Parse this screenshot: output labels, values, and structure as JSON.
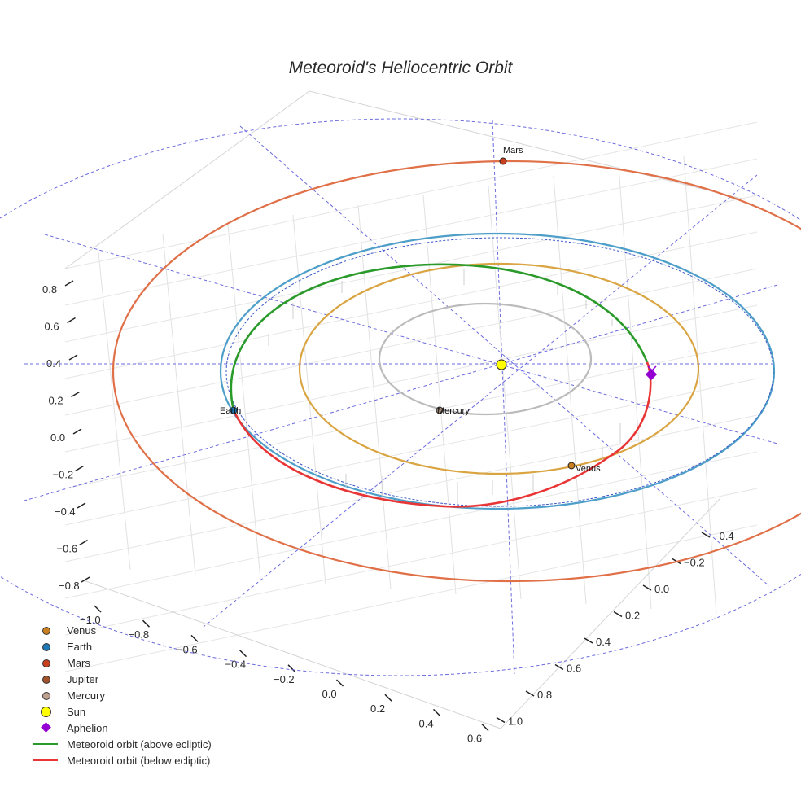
{
  "chart_data": {
    "type": "scatter3d",
    "title": "Meteoroid's Heliocentric Orbit",
    "axes": {
      "x": {
        "ticks": [
          "−1.0",
          "−0.8",
          "−0.6",
          "−0.4",
          "−0.2",
          "0.0",
          "0.2",
          "0.4",
          "0.6"
        ]
      },
      "y": {
        "ticks": [
          "−0.4",
          "−0.2",
          "0.0",
          "0.2",
          "0.4",
          "0.6",
          "0.8",
          "1.0"
        ]
      },
      "z": {
        "ticks": [
          "0.8",
          "0.6",
          "0.4",
          "0.2",
          "0.0",
          "−0.2",
          "−0.4",
          "−0.6",
          "−0.8"
        ]
      },
      "grid": true
    },
    "orbits": [
      {
        "name": "Mercury",
        "a": 0.387,
        "color": "#bbbbbb"
      },
      {
        "name": "Venus",
        "a": 0.723,
        "color": "#d9a441"
      },
      {
        "name": "Earth",
        "a": 1.0,
        "color": "#4d9ec9"
      },
      {
        "name": "Mars",
        "a": 1.524,
        "color": "#e07048"
      }
    ],
    "bodies": [
      {
        "name": "Mars",
        "label": "Mars",
        "color": "#c8401e"
      },
      {
        "name": "Earth",
        "label": "Earth",
        "color": "#1f77b4"
      },
      {
        "name": "Mercury",
        "label": "Mercury",
        "color": "#a08878"
      },
      {
        "name": "Venus",
        "label": "Venus",
        "color": "#c8801e"
      },
      {
        "name": "Sun",
        "label": "",
        "color": "#ffff00"
      }
    ],
    "meteoroid": {
      "above_ecliptic_color": "#2a9a2a",
      "below_ecliptic_color": "#e83535",
      "aphelion_color": "#9400d3"
    },
    "legend": {
      "placement": "bottom-left",
      "items": [
        {
          "label": "Venus",
          "symbol": "dot",
          "color": "#c8801e"
        },
        {
          "label": "Earth",
          "symbol": "dot",
          "color": "#1f77b4"
        },
        {
          "label": "Mars",
          "symbol": "dot",
          "color": "#c8401e"
        },
        {
          "label": "Jupiter",
          "symbol": "dot",
          "color": "#a0522d"
        },
        {
          "label": "Mercury",
          "symbol": "dot",
          "color": "#c0a090"
        },
        {
          "label": "Sun",
          "symbol": "bigdot",
          "color": "#ffff00"
        },
        {
          "label": "Aphelion",
          "symbol": "diamond",
          "color": "#9400d3"
        },
        {
          "label": "Meteoroid orbit (above ecliptic)",
          "symbol": "line",
          "color": "#2a9a2a"
        },
        {
          "label": "Meteoroid orbit (below ecliptic)",
          "symbol": "line",
          "color": "#e83535"
        }
      ]
    }
  }
}
